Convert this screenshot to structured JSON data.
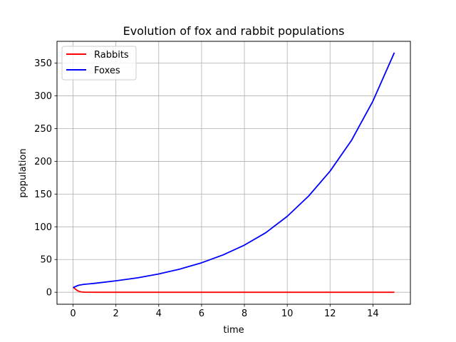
{
  "chart_data": {
    "type": "line",
    "title": "Evolution of fox and rabbit populations",
    "xlabel": "time",
    "ylabel": "population",
    "xlim": [
      -0.75,
      15.75
    ],
    "ylim": [
      -18.3,
      383.3
    ],
    "xticks": [
      0,
      2,
      4,
      6,
      8,
      10,
      12,
      14
    ],
    "yticks": [
      0,
      50,
      100,
      150,
      200,
      250,
      300,
      350
    ],
    "grid": true,
    "legend_position": "top-left",
    "series": [
      {
        "name": "Rabbits",
        "color": "#ff0000",
        "points": [
          [
            0,
            8
          ],
          [
            0.1,
            5
          ],
          [
            0.2,
            2.5
          ],
          [
            0.3,
            1.2
          ],
          [
            0.4,
            0.5
          ],
          [
            0.6,
            0.1
          ],
          [
            1,
            0
          ],
          [
            2,
            0
          ],
          [
            4,
            0
          ],
          [
            6,
            0
          ],
          [
            8,
            0
          ],
          [
            10,
            0
          ],
          [
            12,
            0
          ],
          [
            14,
            0
          ],
          [
            15,
            0
          ]
        ]
      },
      {
        "name": "Foxes",
        "color": "#0000ff",
        "points": [
          [
            0,
            7
          ],
          [
            0.1,
            8.5
          ],
          [
            0.2,
            10
          ],
          [
            0.3,
            11
          ],
          [
            0.5,
            12
          ],
          [
            1,
            13.6
          ],
          [
            2,
            17.5
          ],
          [
            3,
            22
          ],
          [
            4,
            28
          ],
          [
            5,
            35.5
          ],
          [
            6,
            45
          ],
          [
            7,
            57
          ],
          [
            8,
            72
          ],
          [
            9,
            91
          ],
          [
            10,
            116
          ],
          [
            11,
            147
          ],
          [
            12,
            185
          ],
          [
            13,
            232
          ],
          [
            14,
            292
          ],
          [
            15,
            366
          ]
        ]
      }
    ]
  }
}
